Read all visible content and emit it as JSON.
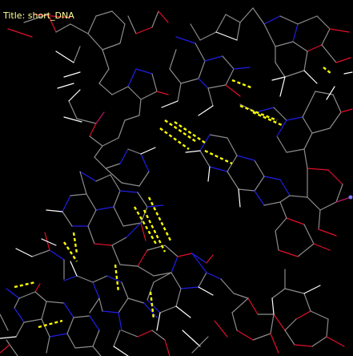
{
  "viewer": {
    "title_label": "Title: short_DNA",
    "title_color": "#ffff99",
    "background_color": "#000000",
    "element_colors": {
      "carbon": "#8c8c8c",
      "oxygen": "#e0102a",
      "nitrogen": "#1f1fe6",
      "hydrogen": "#ffffff",
      "phosphorus": "#b31a66",
      "hydrogen_bond": "#ffff00"
    }
  }
}
